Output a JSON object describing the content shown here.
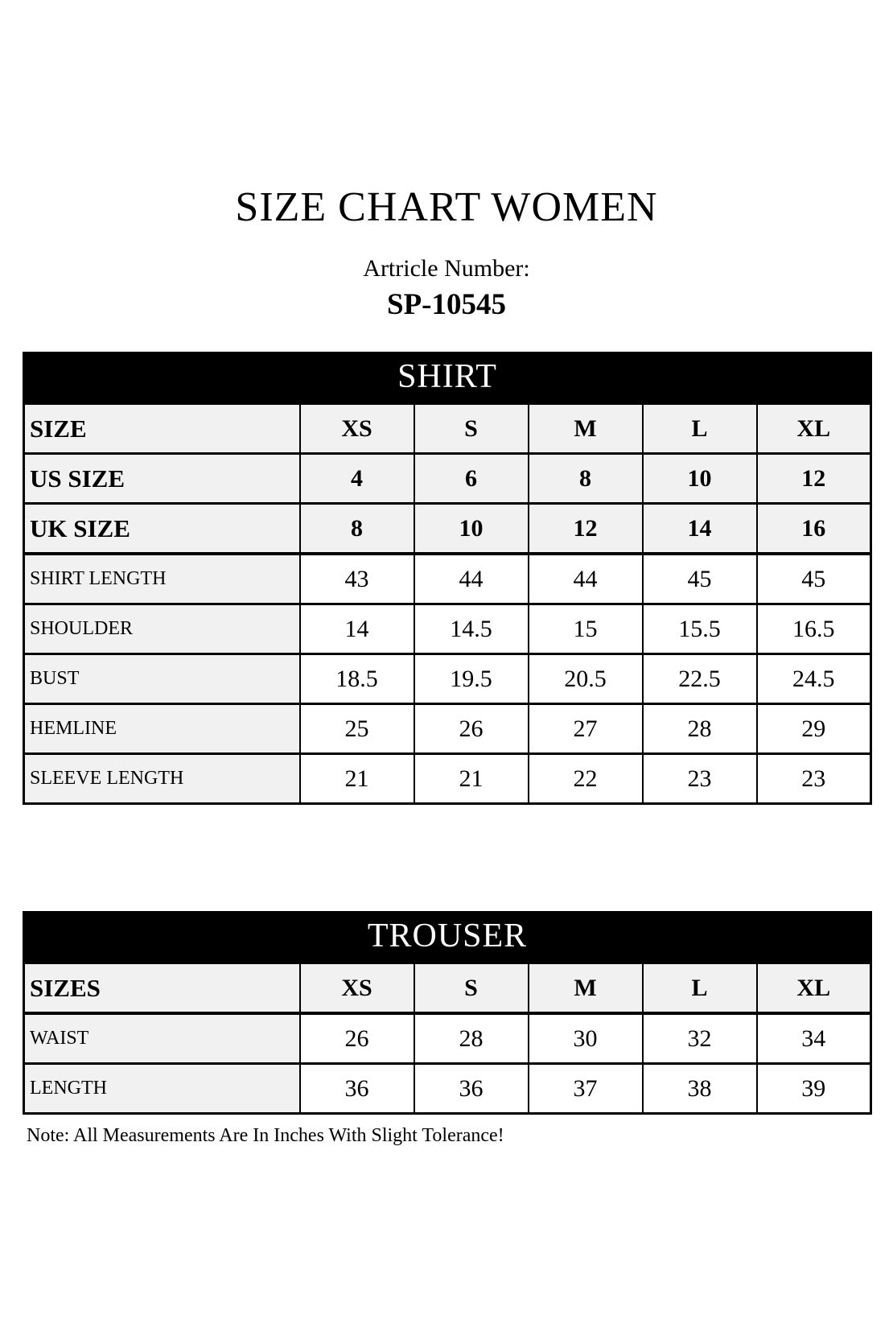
{
  "page": {
    "title": "SIZE CHART WOMEN",
    "article_label": "Artricle Number:",
    "article_number": "SP-10545",
    "note": "Note: All Measurements Are In Inches With Slight Tolerance!"
  },
  "colors": {
    "band_bg": "#000000",
    "band_text": "#ffffff",
    "label_cell_bg": "#f1f1f1",
    "data_cell_bg": "#ffffff",
    "border": "#000000"
  },
  "shirt_table": {
    "title": "SHIRT",
    "columns": [
      "XS",
      "S",
      "M",
      "L",
      "XL"
    ],
    "header_rows": [
      {
        "label": "SIZE",
        "values": [
          "XS",
          "S",
          "M",
          "L",
          "XL"
        ]
      },
      {
        "label": "US SIZE",
        "values": [
          "4",
          "6",
          "8",
          "10",
          "12"
        ]
      },
      {
        "label": "UK SIZE",
        "values": [
          "8",
          "10",
          "12",
          "14",
          "16"
        ]
      }
    ],
    "measurement_rows": [
      {
        "label": "SHIRT LENGTH",
        "values": [
          "43",
          "44",
          "44",
          "45",
          "45"
        ]
      },
      {
        "label": "SHOULDER",
        "values": [
          "14",
          "14.5",
          "15",
          "15.5",
          "16.5"
        ]
      },
      {
        "label": "BUST",
        "values": [
          "18.5",
          "19.5",
          "20.5",
          "22.5",
          "24.5"
        ]
      },
      {
        "label": "HEMLINE",
        "values": [
          "25",
          "26",
          "27",
          "28",
          "29"
        ]
      },
      {
        "label": "SLEEVE LENGTH",
        "values": [
          "21",
          "21",
          "22",
          "23",
          "23"
        ]
      }
    ]
  },
  "trouser_table": {
    "title": "TROUSER",
    "columns": [
      "XS",
      "S",
      "M",
      "L",
      "XL"
    ],
    "header_rows": [
      {
        "label": "SIZES",
        "values": [
          "XS",
          "S",
          "M",
          "L",
          "XL"
        ]
      }
    ],
    "measurement_rows": [
      {
        "label": "WAIST",
        "values": [
          "26",
          "28",
          "30",
          "32",
          "34"
        ]
      },
      {
        "label": "LENGTH",
        "values": [
          "36",
          "36",
          "37",
          "38",
          "39"
        ]
      }
    ]
  }
}
